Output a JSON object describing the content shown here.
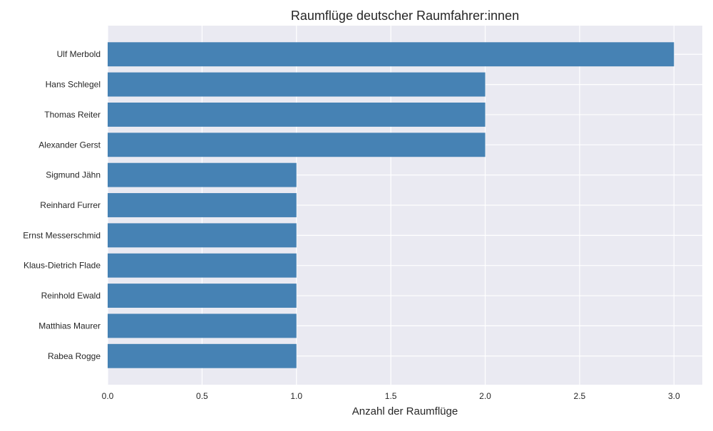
{
  "chart_data": {
    "type": "bar",
    "orientation": "horizontal",
    "title": "Raumflüge deutscher Raumfahrer:innen",
    "xlabel": "Anzahl der Raumflüge",
    "ylabel": "",
    "categories": [
      "Ulf Merbold",
      "Hans Schlegel",
      "Thomas Reiter",
      "Alexander Gerst",
      "Sigmund Jähn",
      "Reinhard Furrer",
      "Ernst Messerschmid",
      "Klaus-Dietrich Flade",
      "Reinhold Ewald",
      "Matthias Maurer",
      "Rabea Rogge"
    ],
    "values": [
      3,
      2,
      2,
      2,
      1,
      1,
      1,
      1,
      1,
      1,
      1
    ],
    "xlim": [
      0,
      3.15
    ],
    "xticks": [
      "0.0",
      "0.5",
      "1.0",
      "1.5",
      "2.0",
      "2.5",
      "3.0"
    ],
    "grid": true,
    "bar_color": "#4682b4",
    "plot_background": "#eaeaf2",
    "grid_color": "#ffffff"
  }
}
